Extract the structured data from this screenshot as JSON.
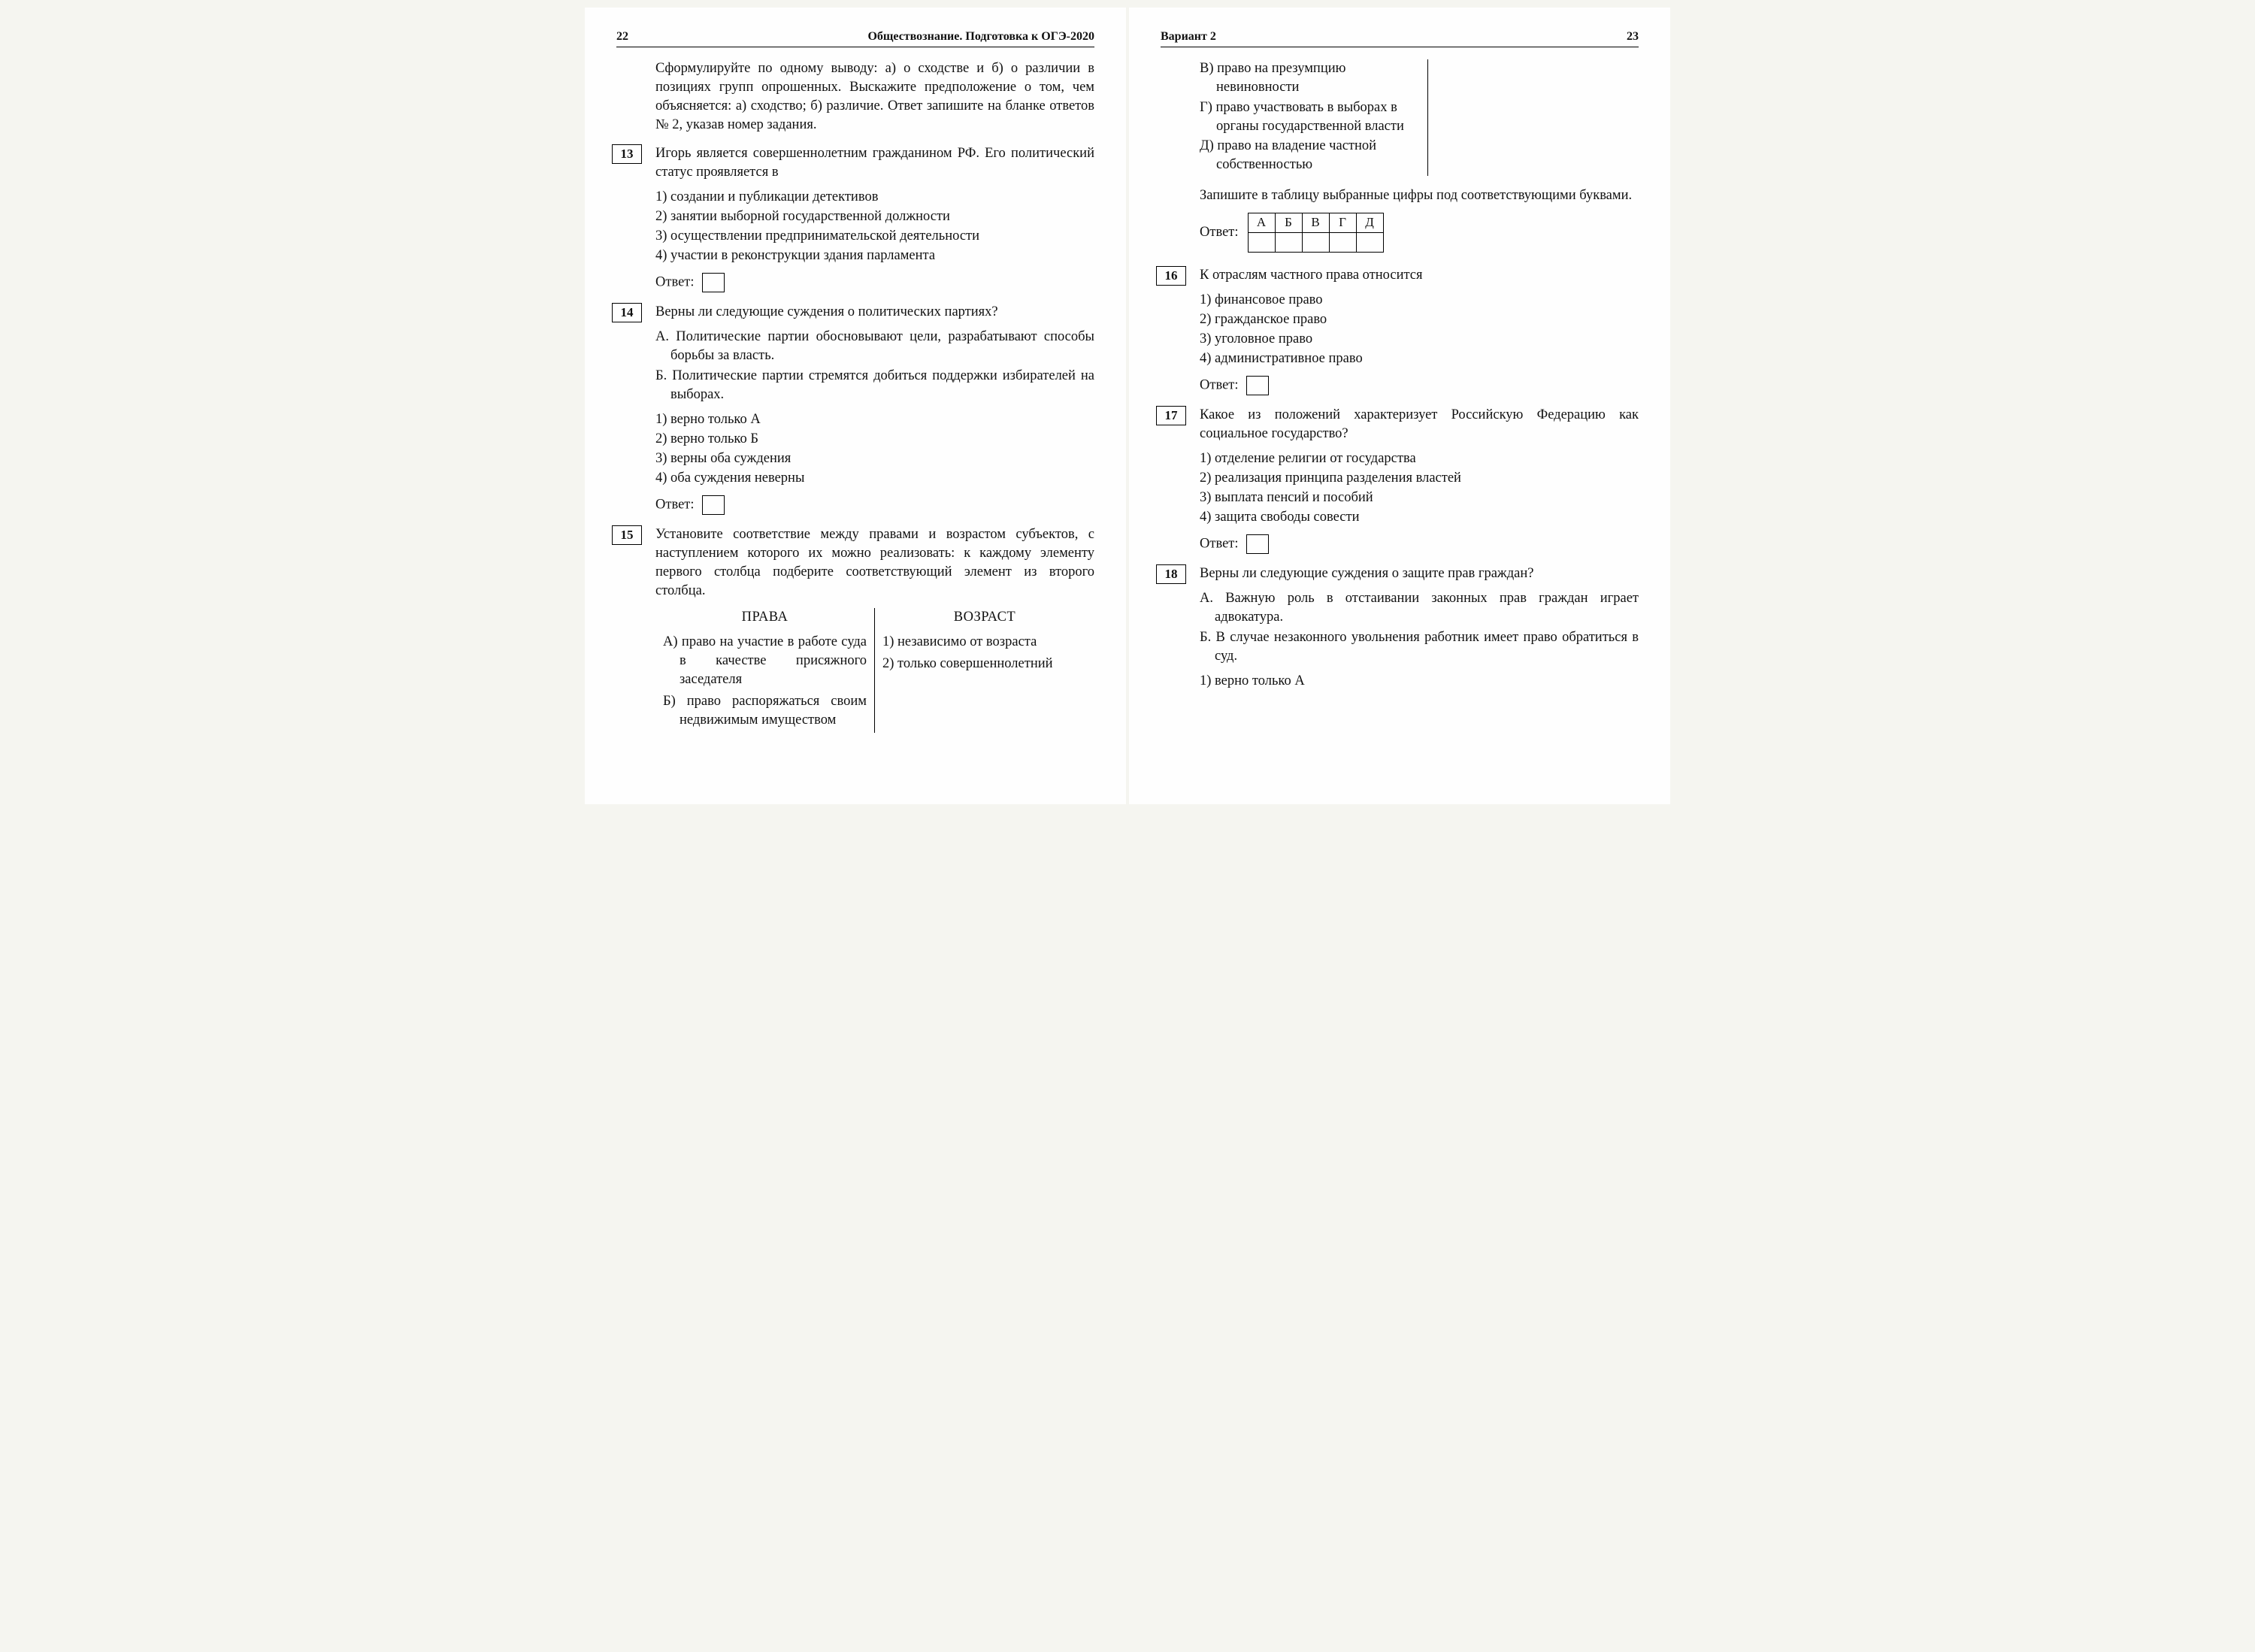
{
  "leftPage": {
    "pageNum": "22",
    "headerTitle": "Обществознание. Подготовка к ОГЭ-2020",
    "intro": "Сформулируйте по одному выводу: а) о сходстве и б) о различии в позициях групп опрошенных. Выскажите предположение о том, чем объясняется: а) сходство; б) различие. Ответ запишите на бланке ответов № 2, указав номер задания.",
    "q13": {
      "num": "13",
      "stem": "Игорь является совершеннолетним гражданином РФ. Его политический статус проявляется в",
      "opts": [
        "1) создании и публикации детективов",
        "2) занятии выборной государственной должности",
        "3) осуществлении предпринимательской деятельности",
        "4) участии в реконструкции здания парламента"
      ],
      "answerLabel": "Ответ:"
    },
    "q14": {
      "num": "14",
      "stem": "Верны ли следующие суждения о политических партиях?",
      "letters": [
        "А. Политические партии обосновывают цели, разрабатывают способы борьбы за власть.",
        "Б. Политические партии стремятся добиться поддержки избирателей на выборах."
      ],
      "opts": [
        "1) верно только А",
        "2) верно только Б",
        "3) верны оба суждения",
        "4) оба суждения неверны"
      ],
      "answerLabel": "Ответ:"
    },
    "q15": {
      "num": "15",
      "stem": "Установите соответствие между правами и возрастом субъектов, с наступлением которого их можно реализовать: к каждому элементу первого столбца подберите соответствующий элемент из второго столбца.",
      "leftHead": "ПРАВА",
      "rightHead": "ВОЗРАСТ",
      "leftItems": [
        "А) право на участие в работе суда в качестве присяжного заседателя",
        "Б) право распоряжаться своим недвижимым имуществом"
      ],
      "rightItems": [
        "1) независимо от возраста",
        "2) только совершеннолетний"
      ]
    }
  },
  "rightPage": {
    "pageNum": "23",
    "headerTitle": "Вариант 2",
    "q15cont": [
      "В) право на презумпцию невиновности",
      "Г) право участвовать в выборах в органы государственной власти",
      "Д) право на владение частной собственностью"
    ],
    "q15after": "Запишите в таблицу выбранные цифры под соответствующими буквами.",
    "gridLabel": "Ответ:",
    "gridHeads": [
      "А",
      "Б",
      "В",
      "Г",
      "Д"
    ],
    "q16": {
      "num": "16",
      "stem": "К отраслям частного права относится",
      "opts": [
        "1) финансовое право",
        "2) гражданское право",
        "3) уголовное право",
        "4) административное право"
      ],
      "answerLabel": "Ответ:"
    },
    "q17": {
      "num": "17",
      "stem": "Какое из положений характеризует Российскую Федерацию как социальное государство?",
      "opts": [
        "1) отделение религии от государства",
        "2) реализация принципа разделения властей",
        "3) выплата пенсий и пособий",
        "4) защита свободы совести"
      ],
      "answerLabel": "Ответ:"
    },
    "q18": {
      "num": "18",
      "stem": "Верны ли следующие суждения о защите прав граждан?",
      "letters": [
        "А. Важную роль в отстаивании законных прав граждан играет адвокатура.",
        "Б. В случае незаконного увольнения работник имеет право обратиться в суд."
      ],
      "opts": [
        "1) верно только А"
      ]
    }
  }
}
